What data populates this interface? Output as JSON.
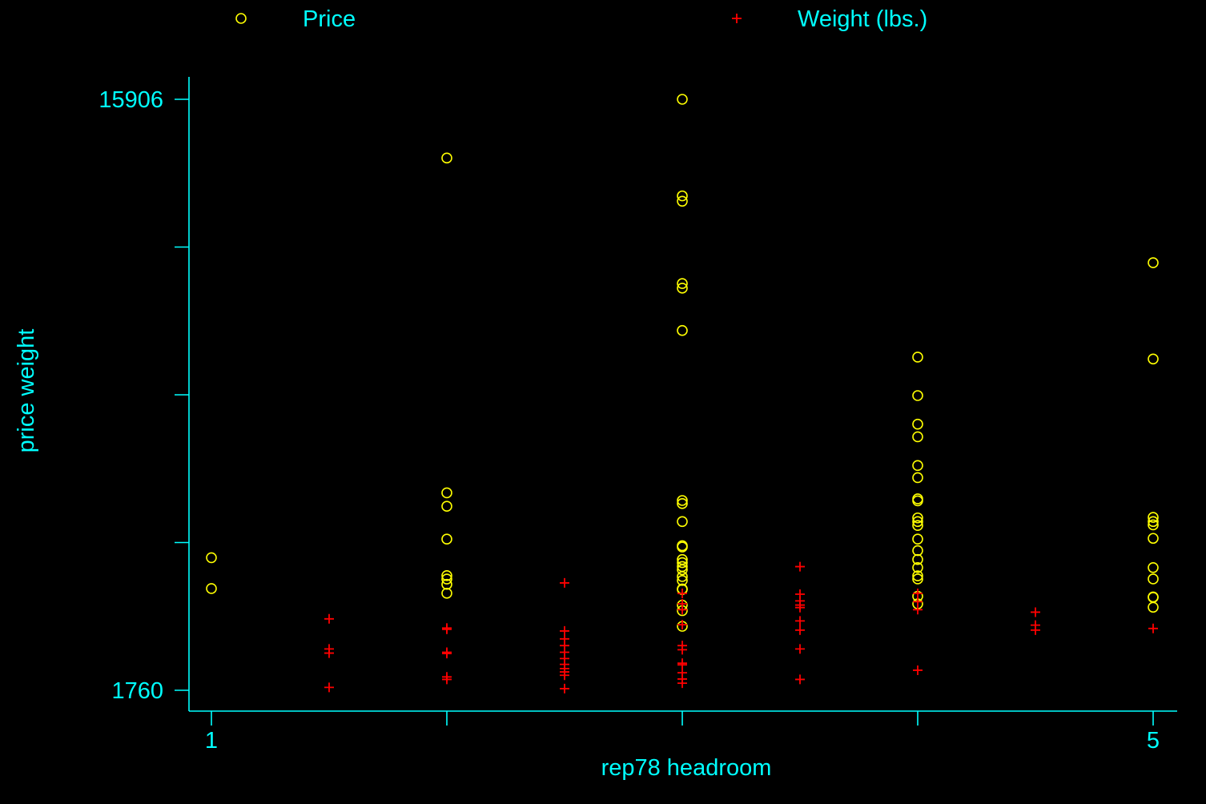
{
  "chart_data": {
    "type": "scatter",
    "title": "",
    "xlabel": "rep78 headroom",
    "ylabel": "price weight",
    "xlim": [
      1,
      5
    ],
    "ylim": [
      1760,
      15906
    ],
    "x_ticks": [
      1,
      2,
      3,
      4,
      5
    ],
    "x_tick_labels": [
      "1",
      "",
      "",
      "",
      "5"
    ],
    "y_ticks": [
      1760,
      5296.5,
      8833,
      12369.5,
      15906
    ],
    "y_tick_labels": [
      "1760",
      "",
      "",
      "",
      "15906"
    ],
    "grid": false,
    "legend_position": "top",
    "colors": {
      "background": "#000000",
      "axis": "#00ffff",
      "text": "#00ffff"
    },
    "series": [
      {
        "name": "Price",
        "marker": "circle",
        "color": "#ffff00",
        "points": [
          [
            1,
            4195
          ],
          [
            1,
            4934
          ],
          [
            2,
            14500
          ],
          [
            2,
            6486
          ],
          [
            2,
            6165
          ],
          [
            2,
            5379
          ],
          [
            2,
            4504
          ],
          [
            2,
            4424
          ],
          [
            2,
            4296
          ],
          [
            2,
            4082
          ],
          [
            3,
            15906
          ],
          [
            3,
            13466
          ],
          [
            3,
            13594
          ],
          [
            3,
            11497
          ],
          [
            3,
            11385
          ],
          [
            3,
            10372
          ],
          [
            3,
            6229
          ],
          [
            3,
            6303
          ],
          [
            3,
            5799
          ],
          [
            3,
            5189
          ],
          [
            3,
            5222
          ],
          [
            3,
            4816
          ],
          [
            3,
            4890
          ],
          [
            3,
            4723
          ],
          [
            3,
            4647
          ],
          [
            3,
            4482
          ],
          [
            3,
            4389
          ],
          [
            3,
            4187
          ],
          [
            3,
            4172
          ],
          [
            3,
            3799
          ],
          [
            3,
            3667
          ],
          [
            3,
            3291
          ],
          [
            4,
            9735
          ],
          [
            4,
            8814
          ],
          [
            4,
            8129
          ],
          [
            4,
            7827
          ],
          [
            4,
            7140
          ],
          [
            4,
            6850
          ],
          [
            4,
            6342
          ],
          [
            4,
            6295
          ],
          [
            4,
            5886
          ],
          [
            4,
            5798
          ],
          [
            4,
            5705
          ],
          [
            4,
            5379
          ],
          [
            4,
            5104
          ],
          [
            4,
            4890
          ],
          [
            4,
            4697
          ],
          [
            4,
            4499
          ],
          [
            4,
            4425
          ],
          [
            4,
            4010
          ],
          [
            4,
            3829
          ],
          [
            5,
            11995
          ],
          [
            5,
            9690
          ],
          [
            5,
            5899
          ],
          [
            5,
            5799
          ],
          [
            5,
            5719
          ],
          [
            5,
            5397
          ],
          [
            5,
            4697
          ],
          [
            5,
            4425
          ],
          [
            5,
            3995
          ],
          [
            5,
            3984
          ],
          [
            5,
            3748
          ]
        ]
      },
      {
        "name": "Weight (lbs.)",
        "marker": "plus",
        "color": "#ff0000",
        "points": [
          [
            1.5,
            3470
          ],
          [
            1.5,
            2750
          ],
          [
            1.5,
            2650
          ],
          [
            1.5,
            1830
          ],
          [
            2,
            3250
          ],
          [
            2,
            3220
          ],
          [
            2,
            2670
          ],
          [
            2,
            2640
          ],
          [
            2,
            2080
          ],
          [
            2,
            2020
          ],
          [
            2.5,
            4330
          ],
          [
            2.5,
            3180
          ],
          [
            2.5,
            2990
          ],
          [
            2.5,
            2830
          ],
          [
            2.5,
            2670
          ],
          [
            2.5,
            2520
          ],
          [
            2.5,
            2380
          ],
          [
            2.5,
            2280
          ],
          [
            2.5,
            2200
          ],
          [
            2.5,
            2120
          ],
          [
            2.5,
            1800
          ],
          [
            3,
            4080
          ],
          [
            3,
            3830
          ],
          [
            3,
            3690
          ],
          [
            3,
            3330
          ],
          [
            3,
            2830
          ],
          [
            3,
            2730
          ],
          [
            3,
            2410
          ],
          [
            3,
            2370
          ],
          [
            3,
            2180
          ],
          [
            3,
            2030
          ],
          [
            3,
            1930
          ],
          [
            3.5,
            4720
          ],
          [
            3.5,
            4060
          ],
          [
            3.5,
            3900
          ],
          [
            3.5,
            3800
          ],
          [
            3.5,
            3740
          ],
          [
            3.5,
            3420
          ],
          [
            3.5,
            3200
          ],
          [
            3.5,
            2750
          ],
          [
            3.5,
            2020
          ],
          [
            4,
            4080
          ],
          [
            4,
            3880
          ],
          [
            4,
            3690
          ],
          [
            4,
            2240
          ],
          [
            4.5,
            3630
          ],
          [
            4.5,
            3320
          ],
          [
            4.5,
            3200
          ],
          [
            5,
            3240
          ]
        ]
      }
    ]
  }
}
